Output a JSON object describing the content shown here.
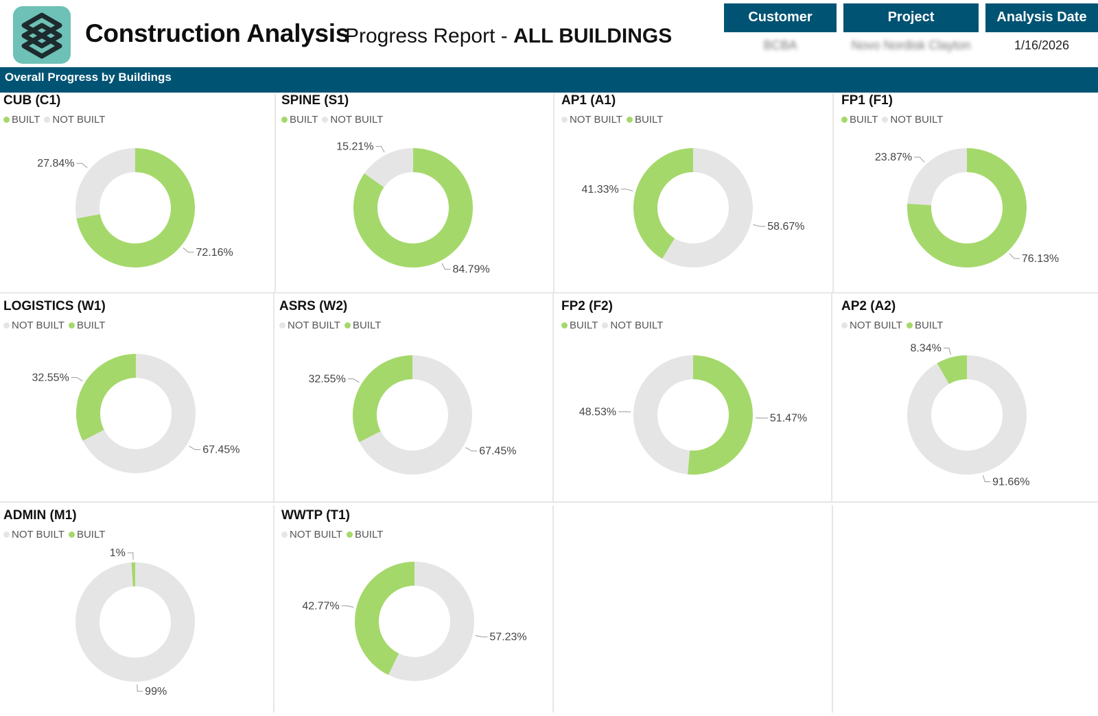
{
  "header": {
    "title": "Construction Analysis",
    "subtitle_prefix": "Progress Report - ",
    "subtitle_bold": "ALL BUILDINGS",
    "logo_icon": "stacked-layers-logo-icon",
    "columns": [
      {
        "label": "Customer",
        "value": "BCBA"
      },
      {
        "label": "Project",
        "value": "Novo Nordisk Clayton"
      },
      {
        "label": "Analysis Date",
        "value": "1/16/2026"
      }
    ]
  },
  "section": {
    "title": "Overall Progress by Buildings"
  },
  "colors": {
    "built": "#a5d86b",
    "not_built": "#e5e5e5",
    "accent": "#005373"
  },
  "chart_data": [
    {
      "type": "pie",
      "title": "CUB (C1)",
      "legend": [
        "BUILT",
        "NOT BUILT"
      ],
      "slices": [
        {
          "label": "BUILT",
          "value": 72.16,
          "display": "72.16%"
        },
        {
          "label": "NOT BUILT",
          "value": 27.84,
          "display": "27.84%"
        }
      ]
    },
    {
      "type": "pie",
      "title": "SPINE (S1)",
      "legend": [
        "BUILT",
        "NOT BUILT"
      ],
      "slices": [
        {
          "label": "BUILT",
          "value": 84.79,
          "display": "84.79%"
        },
        {
          "label": "NOT BUILT",
          "value": 15.21,
          "display": "15.21%"
        }
      ]
    },
    {
      "type": "pie",
      "title": "AP1 (A1)",
      "legend": [
        "NOT BUILT",
        "BUILT"
      ],
      "slices": [
        {
          "label": "NOT BUILT",
          "value": 58.67,
          "display": "58.67%"
        },
        {
          "label": "BUILT",
          "value": 41.33,
          "display": "41.33%"
        }
      ]
    },
    {
      "type": "pie",
      "title": "FP1 (F1)",
      "legend": [
        "BUILT",
        "NOT BUILT"
      ],
      "slices": [
        {
          "label": "BUILT",
          "value": 76.13,
          "display": "76.13%"
        },
        {
          "label": "NOT BUILT",
          "value": 23.87,
          "display": "23.87%"
        }
      ]
    },
    {
      "type": "pie",
      "title": "LOGISTICS (W1)",
      "legend": [
        "NOT BUILT",
        "BUILT"
      ],
      "slices": [
        {
          "label": "NOT BUILT",
          "value": 67.45,
          "display": "67.45%"
        },
        {
          "label": "BUILT",
          "value": 32.55,
          "display": "32.55%"
        }
      ]
    },
    {
      "type": "pie",
      "title": "ASRS (W2)",
      "legend": [
        "NOT BUILT",
        "BUILT"
      ],
      "slices": [
        {
          "label": "NOT BUILT",
          "value": 67.45,
          "display": "67.45%"
        },
        {
          "label": "BUILT",
          "value": 32.55,
          "display": "32.55%"
        }
      ]
    },
    {
      "type": "pie",
      "title": "FP2 (F2)",
      "legend": [
        "BUILT",
        "NOT BUILT"
      ],
      "slices": [
        {
          "label": "BUILT",
          "value": 51.47,
          "display": "51.47%"
        },
        {
          "label": "NOT BUILT",
          "value": 48.53,
          "display": "48.53%"
        }
      ]
    },
    {
      "type": "pie",
      "title": "AP2 (A2)",
      "legend": [
        "NOT BUILT",
        "BUILT"
      ],
      "slices": [
        {
          "label": "NOT BUILT",
          "value": 91.66,
          "display": "91.66%"
        },
        {
          "label": "BUILT",
          "value": 8.34,
          "display": "8.34%"
        }
      ]
    },
    {
      "type": "pie",
      "title": "ADMIN (M1)",
      "legend": [
        "NOT BUILT",
        "BUILT"
      ],
      "slices": [
        {
          "label": "NOT BUILT",
          "value": 99,
          "display": "99%"
        },
        {
          "label": "BUILT",
          "value": 1,
          "display": "1%"
        }
      ]
    },
    {
      "type": "pie",
      "title": "WWTP (T1)",
      "legend": [
        "NOT BUILT",
        "BUILT"
      ],
      "slices": [
        {
          "label": "NOT BUILT",
          "value": 57.23,
          "display": "57.23%"
        },
        {
          "label": "BUILT",
          "value": 42.77,
          "display": "42.77%"
        }
      ]
    }
  ]
}
